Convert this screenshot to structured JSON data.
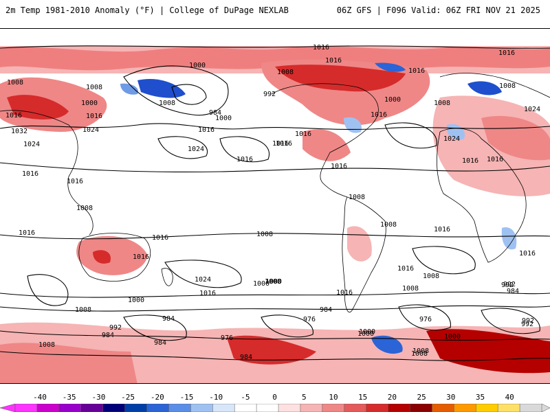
{
  "header": {
    "title_left": "2m Temp 1981-2010 Anomaly (°F) | College of DuPage NEXLAB",
    "title_right": "06Z GFS | F096 Valid: 06Z FRI NOV 21 2025"
  },
  "map": {
    "description_type": "global temperature anomaly with sea-level pressure isobars",
    "isobar_labels": [
      "1016",
      "1016",
      "1016",
      "1000",
      "1008",
      "1008",
      "992",
      "1016",
      "1000",
      "1008",
      "1016",
      "1008",
      "1008",
      "1008",
      "1016",
      "1000",
      "984",
      "1000",
      "1016",
      "1016",
      "1016",
      "1024",
      "1024",
      "1016",
      "1032",
      "1024",
      "1024",
      "1016",
      "1016",
      "1016",
      "1016",
      "1016",
      "1024",
      "1016",
      "1016",
      "1008",
      "1008",
      "1008",
      "1016",
      "1016",
      "1008",
      "1016",
      "1016",
      "1016",
      "1008",
      "1024",
      "1008",
      "1000",
      "1016",
      "1016",
      "1008",
      "1000",
      "992",
      "984",
      "1008",
      "1000",
      "992",
      "984",
      "976",
      "984",
      "992",
      "976",
      "984",
      "992",
      "1000",
      "1008",
      "984",
      "976",
      "992",
      "984",
      "1000",
      "1008",
      "1000",
      "1008",
      "1016"
    ],
    "colors": {
      "warm_light": "#f7c4c4",
      "warm_mid": "#ef7f7f",
      "warm_strong": "#d62020",
      "warm_extreme": "#b00000",
      "hot_orange": "#ff9a00",
      "cool_light": "#cfe0f7",
      "cool_mid": "#6f9be6",
      "cool_strong": "#1f4fcc",
      "land_outline": "#000000"
    }
  },
  "colorbar": {
    "labels": [
      "-40",
      "-35",
      "-30",
      "-25",
      "-20",
      "-15",
      "-10",
      "-5",
      "0",
      "5",
      "10",
      "15",
      "20",
      "25",
      "30",
      "35",
      "40"
    ],
    "colors": [
      "#ff33ff",
      "#cc00cc",
      "#9900cc",
      "#660099",
      "#00007a",
      "#003fa8",
      "#2a64d6",
      "#5a8ee8",
      "#9fc1f2",
      "#d8e6f9",
      "#ffffff",
      "#ffffff",
      "#fde0e0",
      "#f6b4b4",
      "#ef8787",
      "#e55a5a",
      "#d62b2b",
      "#b50000",
      "#8a0000",
      "#e65c00",
      "#ff9900",
      "#ffcc00",
      "#ffe066",
      "#d9d9d9"
    ]
  }
}
